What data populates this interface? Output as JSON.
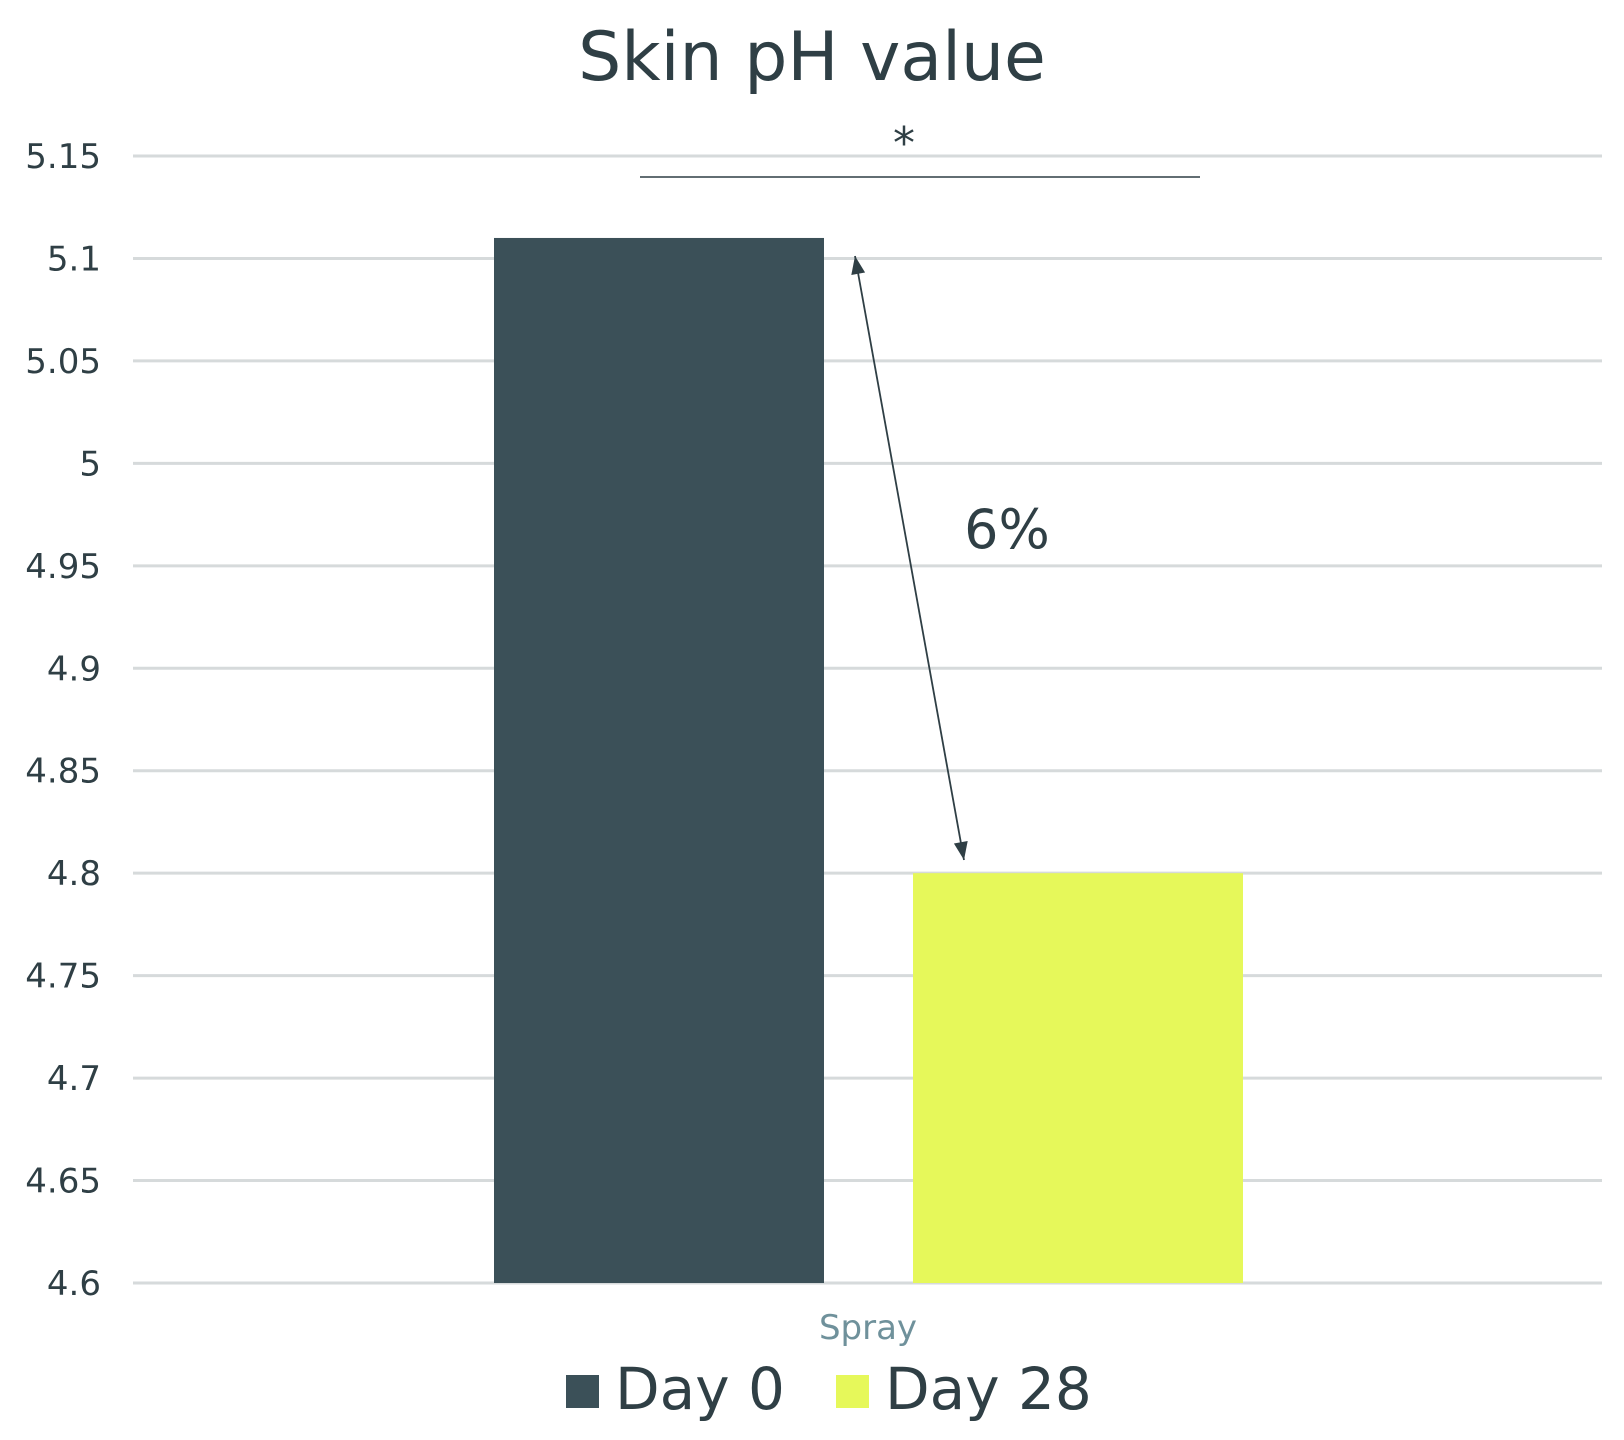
{
  "chart_data": {
    "type": "bar",
    "title": "Skin pH value",
    "xlabel": "",
    "ylabel": "",
    "categories": [
      "Spray"
    ],
    "series": [
      {
        "name": "Day 0",
        "values": [
          5.11
        ],
        "color": "#3b5058"
      },
      {
        "name": "Day 28",
        "values": [
          4.8
        ],
        "color": "#e6f85a"
      }
    ],
    "ylim": [
      4.6,
      5.15
    ],
    "yticks": [
      "5.15",
      "5.1",
      "5.05",
      "5",
      "4.95",
      "4.9",
      "4.85",
      "4.8",
      "4.75",
      "4.7",
      "4.65",
      "4.6"
    ],
    "grid": true,
    "legend": "bottom",
    "annotations": {
      "significance": "*",
      "change_label": "6%"
    }
  },
  "colors": {
    "title": "#2f3f45",
    "ticks": "#2f3f45",
    "category_label": "#6f919b",
    "grid": "#d6dadb"
  }
}
